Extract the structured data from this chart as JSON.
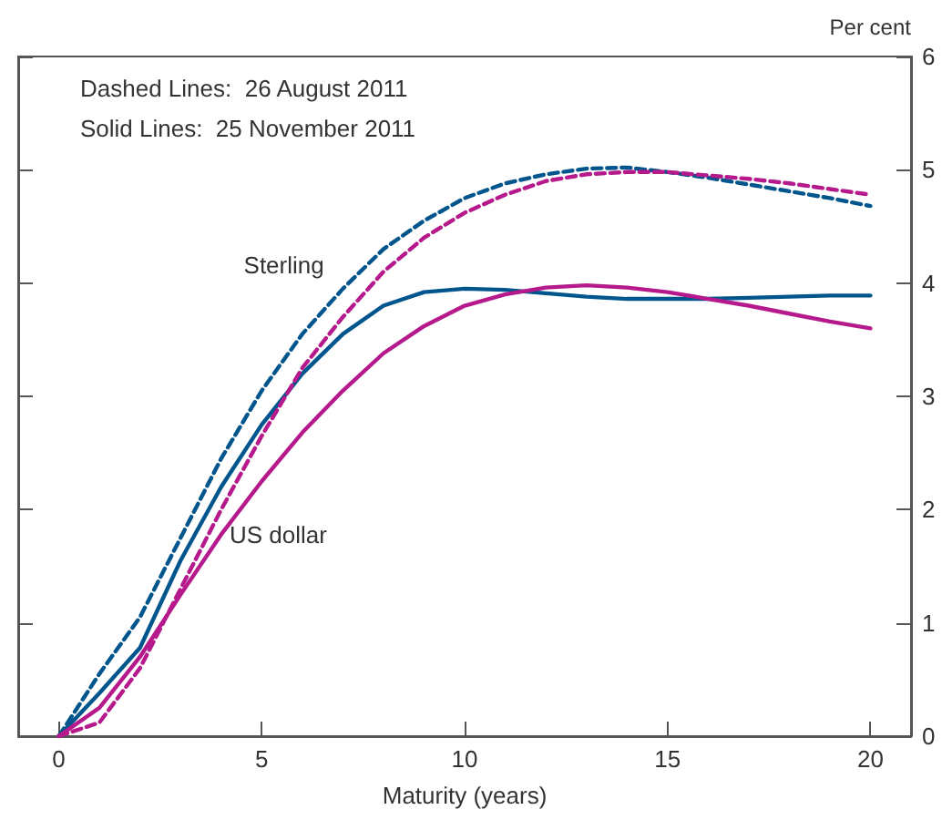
{
  "chart_data": {
    "type": "line",
    "xlabel": "Maturity (years)",
    "ylabel": "Per cent",
    "annotations": [
      "Dashed Lines:  26 August 2011",
      "Solid Lines:  25 November 2011"
    ],
    "x": [
      0,
      1,
      2,
      3,
      4,
      5,
      6,
      7,
      8,
      9,
      10,
      11,
      12,
      13,
      14,
      15,
      16,
      17,
      18,
      19,
      20
    ],
    "xlim": [
      -1,
      21
    ],
    "xticks": [
      0,
      5,
      10,
      15,
      20
    ],
    "ylim": [
      0,
      6
    ],
    "yticks": [
      0,
      1,
      2,
      3,
      4,
      5,
      6
    ],
    "grid": false,
    "legend": false,
    "marker": "none",
    "series": [
      {
        "name": "Sterling",
        "color": "#00558c",
        "line_style": "solid",
        "values": [
          0,
          0.38,
          0.78,
          1.55,
          2.2,
          2.75,
          3.2,
          3.55,
          3.8,
          3.92,
          3.95,
          3.94,
          3.91,
          3.88,
          3.86,
          3.86,
          3.86,
          3.87,
          3.88,
          3.89,
          3.89
        ]
      },
      {
        "color": "#00558c",
        "line_style": "dashed",
        "values": [
          0,
          0.55,
          1.05,
          1.75,
          2.45,
          3.05,
          3.55,
          3.95,
          4.3,
          4.55,
          4.75,
          4.88,
          4.96,
          5.01,
          5.02,
          4.98,
          4.93,
          4.87,
          4.81,
          4.75,
          4.68
        ]
      },
      {
        "name": "US dollar",
        "color": "#b5198c",
        "line_style": "solid",
        "values": [
          0,
          0.25,
          0.7,
          1.25,
          1.78,
          2.25,
          2.68,
          3.05,
          3.38,
          3.62,
          3.8,
          3.9,
          3.96,
          3.98,
          3.96,
          3.92,
          3.86,
          3.8,
          3.73,
          3.66,
          3.6
        ]
      },
      {
        "color": "#b5198c",
        "line_style": "dashed",
        "values": [
          0,
          0.12,
          0.6,
          1.3,
          2.0,
          2.65,
          3.25,
          3.7,
          4.1,
          4.4,
          4.62,
          4.78,
          4.9,
          4.96,
          4.98,
          4.98,
          4.95,
          4.92,
          4.88,
          4.83,
          4.78
        ]
      }
    ]
  }
}
